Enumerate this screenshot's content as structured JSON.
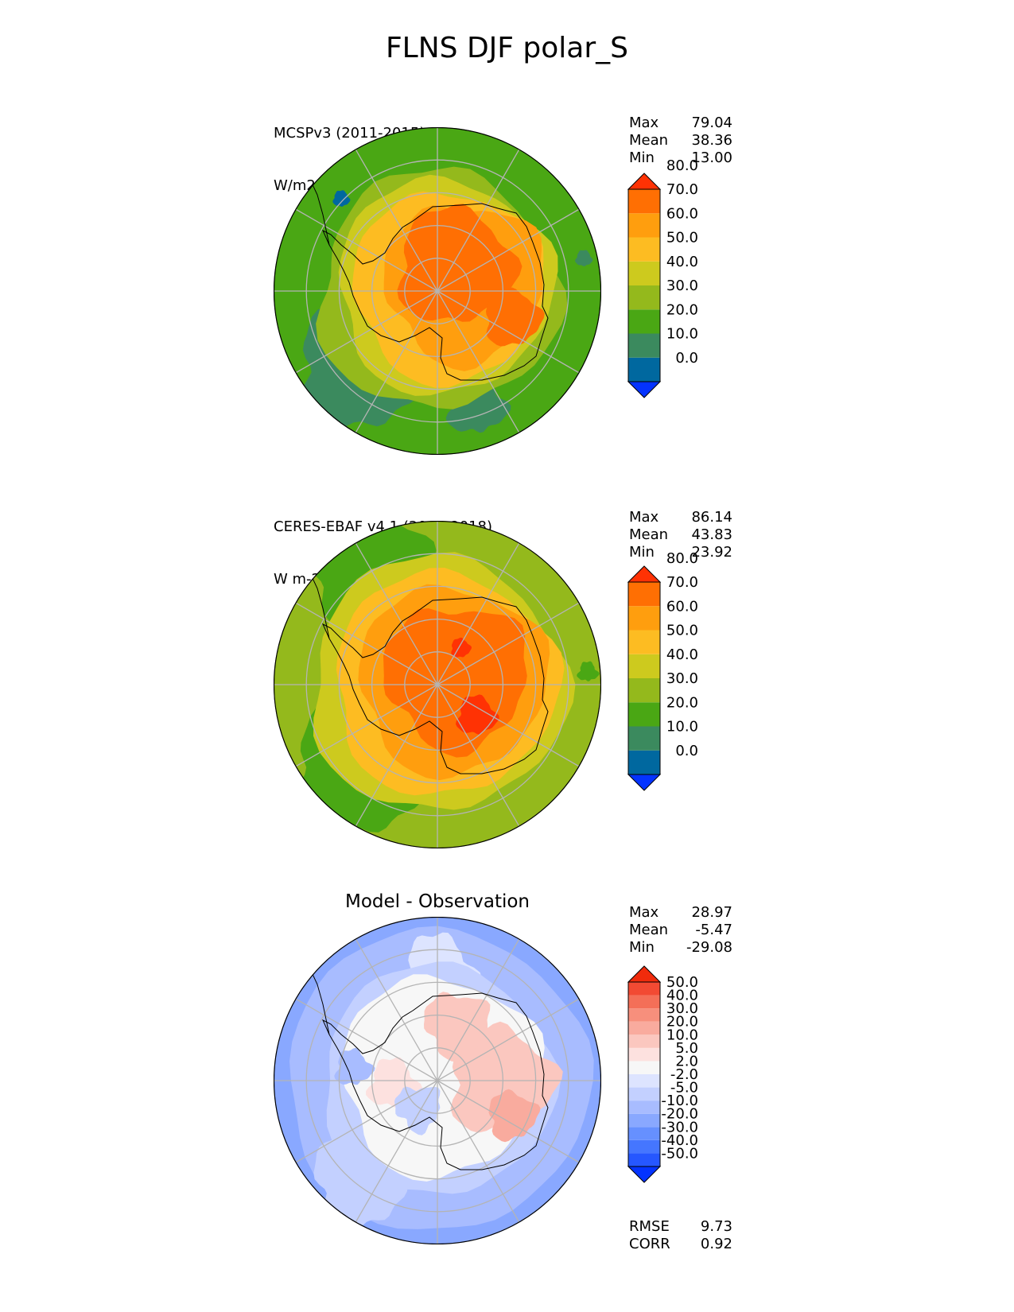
{
  "title": "FLNS DJF polar_S",
  "panels": [
    {
      "label_line1": "MCSPv3 (2011-2015)",
      "label_line2": "W/m2",
      "stats": [
        {
          "label": "Max",
          "value": "79.04"
        },
        {
          "label": "Mean",
          "value": "38.36"
        },
        {
          "label": "Min",
          "value": "13.00"
        }
      ],
      "colorbar": {
        "colors": [
          "#0433ff",
          "#00689f",
          "#3b8a5e",
          "#4aa714",
          "#94b91c",
          "#cdca1e",
          "#fdbc22",
          "#ff9e0e",
          "#ff6f03",
          "#ff3204"
        ],
        "ticks": [
          "0.0",
          "10.0",
          "20.0",
          "30.0",
          "40.0",
          "50.0",
          "60.0",
          "70.0",
          "80.0"
        ]
      }
    },
    {
      "label_line1": "CERES-EBAF v4.1 (2001-2018)",
      "label_line2": "W m-2",
      "stats": [
        {
          "label": "Max",
          "value": "86.14"
        },
        {
          "label": "Mean",
          "value": "43.83"
        },
        {
          "label": "Min",
          "value": "23.92"
        }
      ],
      "colorbar": {
        "colors": [
          "#0433ff",
          "#00689f",
          "#3b8a5e",
          "#4aa714",
          "#94b91c",
          "#cdca1e",
          "#fdbc22",
          "#ff9e0e",
          "#ff6f03",
          "#ff3204"
        ],
        "ticks": [
          "0.0",
          "10.0",
          "20.0",
          "30.0",
          "40.0",
          "50.0",
          "60.0",
          "70.0",
          "80.0"
        ]
      }
    },
    {
      "title": "Model - Observation",
      "stats": [
        {
          "label": "Max",
          "value": "28.97"
        },
        {
          "label": "Mean",
          "value": "-5.47"
        },
        {
          "label": "Min",
          "value": "-29.08"
        }
      ],
      "colorbar": {
        "colors": [
          "#0433ff",
          "#2657ff",
          "#4576ff",
          "#6690ff",
          "#89a8ff",
          "#a8bcff",
          "#c3d0ff",
          "#dde4ff",
          "#f7f7f7",
          "#fde1df",
          "#fbc7bf",
          "#f9ab9e",
          "#f78f7c",
          "#f46f58",
          "#f24a33",
          "#f02b0c"
        ],
        "ticks": [
          "-50.0",
          "-40.0",
          "-30.0",
          "-20.0",
          "-10.0",
          "-5.0",
          "-2.0",
          "2.0",
          "5.0",
          "10.0",
          "20.0",
          "30.0",
          "40.0",
          "50.0"
        ]
      },
      "footer": [
        {
          "label": "RMSE",
          "value": "9.73"
        },
        {
          "label": "CORR",
          "value": "0.92"
        }
      ]
    }
  ]
}
